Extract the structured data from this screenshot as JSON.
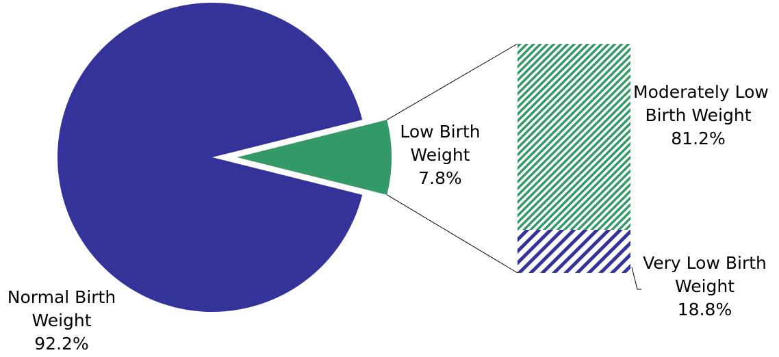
{
  "chart_data": {
    "type": "bar-of-pie",
    "pie": {
      "slices": [
        {
          "name_lines": [
            "Normal Birth",
            "Weight"
          ],
          "value_label": "92.2%",
          "value": 92.2,
          "color": "#333399"
        },
        {
          "name_lines": [
            "Low Birth",
            "Weight"
          ],
          "value_label": "7.8%",
          "value": 7.8,
          "color": "#339966",
          "exploded": true
        }
      ]
    },
    "bar": {
      "breakdown_of": "Low Birth Weight",
      "segments": [
        {
          "name_lines": [
            "Moderately Low",
            "Birth Weight"
          ],
          "value_label": "81.2%",
          "value": 81.2,
          "color": "#339966",
          "pattern": "diagonal-stripes"
        },
        {
          "name_lines": [
            "Very Low Birth",
            "Weight"
          ],
          "value_label": "18.8%",
          "value": 18.8,
          "color": "#333399",
          "pattern": "diagonal-stripes"
        }
      ]
    }
  }
}
